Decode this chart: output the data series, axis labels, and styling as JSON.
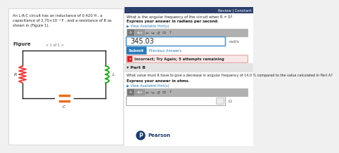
{
  "bg_color": "#f0f0f0",
  "left_panel_bg": "#ffffff",
  "right_panel_bg": "#ffffff",
  "top_bar_color": "#1e3a5c",
  "review_constant_text": "Review | Constant",
  "problem_text": "An L-R-C circuit has an inductance of 0.420 H , a\ncapacitance of 2.75×10⁻⁵ F , and a resistance of R as\nshown in (Figure 1).",
  "figure_label": "Figure",
  "figure_nav": "< 1 of 1 >",
  "part_a_question": "What is the angular frequency of the circuit when R = 0?",
  "part_a_subtext": "Express your answer in radians per second.",
  "hint_text": "▶ View Available Hint(s)",
  "answer_value": "345.03",
  "answer_unit": "rad/s",
  "submit_text": "Submit",
  "prev_answers_text": "Previous Answers",
  "incorrect_text": "Incorrect; Try Again; 5 attempts remaining",
  "part_b_label": "▾ Part B",
  "part_b_question": "What value must R have to give a decrease in angular frequency of 14.0 % compared to the value calculated in Part A?",
  "part_b_subtext": "Express your answer in ohms.",
  "hint_text2": "▶ View Available Hint(s)",
  "unit_b": "Ω",
  "pearson_text": "Pearson",
  "resistor_color": "#e84040",
  "inductor_color": "#22aa22",
  "capacitor_color": "#e87020",
  "circuit_line_color": "#222222",
  "submit_bg": "#2979b8",
  "hint_link_color": "#2979b8",
  "incorrect_icon_color": "#cc2222",
  "input_border_color": "#5599cc",
  "part_b_bg": "#e4e4e4",
  "toolbar_bg": "#b0b0b0",
  "review_bar_bg": "#2c3e6b"
}
